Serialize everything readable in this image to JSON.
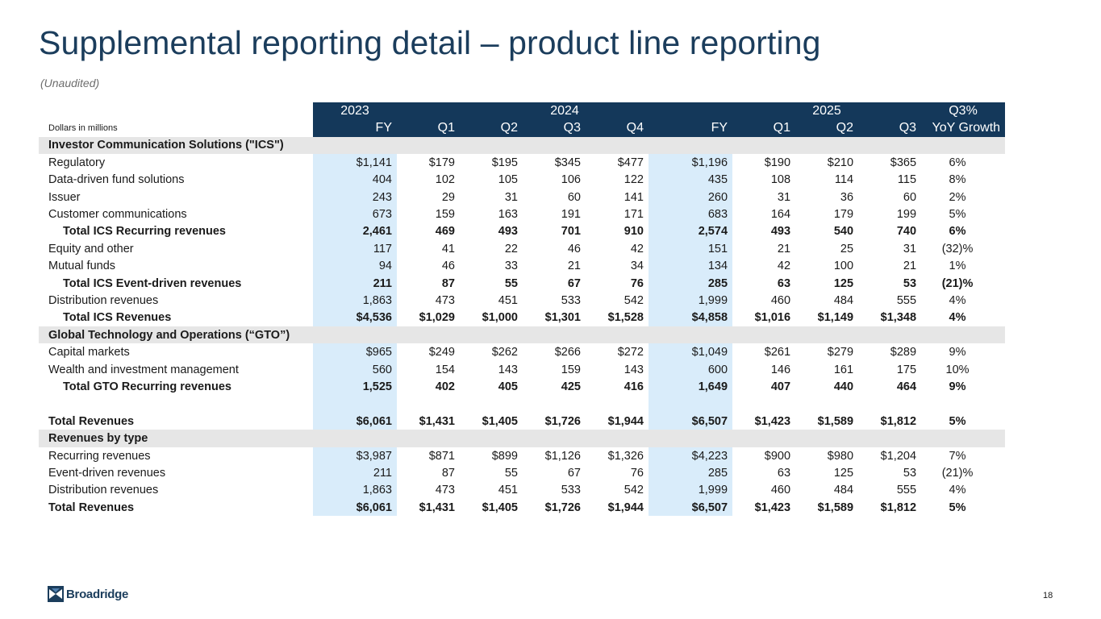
{
  "title": "Supplemental reporting detail – product line reporting",
  "subtitle": "(Unaudited)",
  "units_label": "Dollars in millions",
  "header": {
    "years": [
      "2023",
      "2024",
      "2025",
      "Q3%"
    ],
    "periods": [
      "FY",
      "Q1",
      "Q2",
      "Q3",
      "Q4",
      "FY",
      "Q1",
      "Q2",
      "Q3",
      "YoY Growth"
    ]
  },
  "rows": [
    {
      "type": "section",
      "label": "Investor Communication Solutions (\"ICS\")"
    },
    {
      "type": "row",
      "label": "Regulatory",
      "values": [
        "$1,141",
        "$179",
        "$195",
        "$345",
        "$477",
        "$1,196",
        "$190",
        "$210",
        "$365",
        "6%"
      ]
    },
    {
      "type": "row",
      "label": "Data-driven fund solutions",
      "values": [
        "404",
        "102",
        "105",
        "106",
        "122",
        "435",
        "108",
        "114",
        "115",
        "8%"
      ]
    },
    {
      "type": "row",
      "label": "Issuer",
      "values": [
        "243",
        "29",
        "31",
        "60",
        "141",
        "260",
        "31",
        "36",
        "60",
        "2%"
      ]
    },
    {
      "type": "row",
      "label": "Customer communications",
      "values": [
        "673",
        "159",
        "163",
        "191",
        "171",
        "683",
        "164",
        "179",
        "199",
        "5%"
      ]
    },
    {
      "type": "total",
      "label": "Total ICS Recurring revenues",
      "values": [
        "2,461",
        "469",
        "493",
        "701",
        "910",
        "2,574",
        "493",
        "540",
        "740",
        "6%"
      ]
    },
    {
      "type": "row",
      "label": "Equity and other",
      "values": [
        "117",
        "41",
        "22",
        "46",
        "42",
        "151",
        "21",
        "25",
        "31",
        "(32)%"
      ]
    },
    {
      "type": "row",
      "label": "Mutual funds",
      "values": [
        "94",
        "46",
        "33",
        "21",
        "34",
        "134",
        "42",
        "100",
        "21",
        "1%"
      ]
    },
    {
      "type": "total",
      "label": "Total ICS Event-driven revenues",
      "values": [
        "211",
        "87",
        "55",
        "67",
        "76",
        "285",
        "63",
        "125",
        "53",
        "(21)%"
      ]
    },
    {
      "type": "row",
      "label": "Distribution revenues",
      "values": [
        "1,863",
        "473",
        "451",
        "533",
        "542",
        "1,999",
        "460",
        "484",
        "555",
        "4%"
      ]
    },
    {
      "type": "total",
      "label": "Total ICS Revenues",
      "values": [
        "$4,536",
        "$1,029",
        "$1,000",
        "$1,301",
        "$1,528",
        "$4,858",
        "$1,016",
        "$1,149",
        "$1,348",
        "4%"
      ]
    },
    {
      "type": "section",
      "label": "Global Technology and Operations (“GTO”)"
    },
    {
      "type": "row",
      "label": "Capital markets",
      "values": [
        "$965",
        "$249",
        "$262",
        "$266",
        "$272",
        "$1,049",
        "$261",
        "$279",
        "$289",
        "9%"
      ]
    },
    {
      "type": "row",
      "label": "Wealth and investment management",
      "values": [
        "560",
        "154",
        "143",
        "159",
        "143",
        "600",
        "146",
        "161",
        "175",
        "10%"
      ]
    },
    {
      "type": "total",
      "label": "Total GTO Recurring revenues",
      "values": [
        "1,525",
        "402",
        "405",
        "425",
        "416",
        "1,649",
        "407",
        "440",
        "464",
        "9%"
      ]
    },
    {
      "type": "spacer"
    },
    {
      "type": "grand",
      "label": "Total Revenues",
      "values": [
        "$6,061",
        "$1,431",
        "$1,405",
        "$1,726",
        "$1,944",
        "$6,507",
        "$1,423",
        "$1,589",
        "$1,812",
        "5%"
      ]
    },
    {
      "type": "section",
      "label": "Revenues by type"
    },
    {
      "type": "row",
      "label": "Recurring revenues",
      "values": [
        "$3,987",
        "$871",
        "$899",
        "$1,126",
        "$1,326",
        "$4,223",
        "$900",
        "$980",
        "$1,204",
        "7%"
      ]
    },
    {
      "type": "row",
      "label": "Event-driven revenues",
      "values": [
        "211",
        "87",
        "55",
        "67",
        "76",
        "285",
        "63",
        "125",
        "53",
        "(21)%"
      ]
    },
    {
      "type": "row",
      "label": "Distribution revenues",
      "values": [
        "1,863",
        "473",
        "451",
        "533",
        "542",
        "1,999",
        "460",
        "484",
        "555",
        "4%"
      ]
    },
    {
      "type": "grand",
      "label": "Total Revenues",
      "values": [
        "$6,061",
        "$1,431",
        "$1,405",
        "$1,726",
        "$1,944",
        "$6,507",
        "$1,423",
        "$1,589",
        "$1,812",
        "5%"
      ]
    }
  ],
  "logo_text": "Broadridge",
  "page_number": "18",
  "colors": {
    "navy": "#14385a",
    "fy_highlight": "#d9ecfa",
    "section_gray": "#e6e6e6",
    "title": "#1b3d5c"
  }
}
